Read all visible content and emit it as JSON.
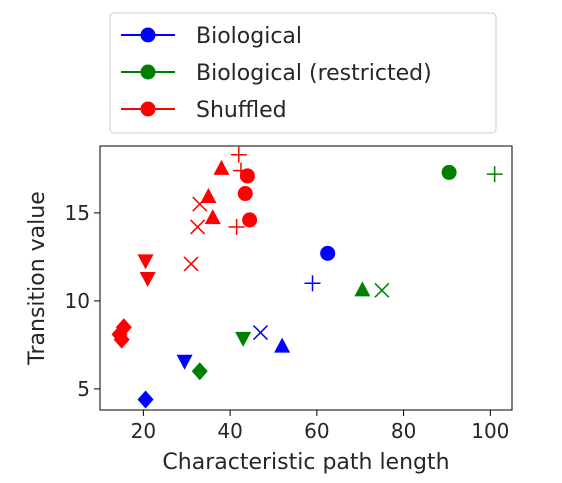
{
  "chart_data": {
    "type": "scatter",
    "xlabel": "Characteristic path length",
    "ylabel": "Transition value",
    "xlim": [
      10,
      105
    ],
    "ylim": [
      3.8,
      18.8
    ],
    "xticks": [
      20,
      40,
      60,
      80,
      100
    ],
    "yticks": [
      5,
      10,
      15
    ],
    "grid": false,
    "legend_position": "top (outside plot)",
    "series": [
      {
        "name": "Biological",
        "color": "#0000ff",
        "points": [
          {
            "x": 62.5,
            "y": 12.7,
            "marker": "circle"
          },
          {
            "x": 59,
            "y": 11.0,
            "marker": "plus"
          },
          {
            "x": 47,
            "y": 8.2,
            "marker": "x"
          },
          {
            "x": 52,
            "y": 7.4,
            "marker": "triangle-up"
          },
          {
            "x": 29.5,
            "y": 6.6,
            "marker": "triangle-down"
          },
          {
            "x": 20.5,
            "y": 4.4,
            "marker": "diamond"
          }
        ]
      },
      {
        "name": "Biological (restricted)",
        "color": "#008000",
        "points": [
          {
            "x": 90.5,
            "y": 17.3,
            "marker": "circle"
          },
          {
            "x": 101,
            "y": 17.2,
            "marker": "plus"
          },
          {
            "x": 75,
            "y": 10.6,
            "marker": "x"
          },
          {
            "x": 70.5,
            "y": 10.6,
            "marker": "triangle-up"
          },
          {
            "x": 43,
            "y": 7.9,
            "marker": "triangle-down"
          },
          {
            "x": 33,
            "y": 6.0,
            "marker": "diamond"
          }
        ]
      },
      {
        "name": "Shuffled",
        "color": "#ff0000",
        "points": [
          {
            "x": 44,
            "y": 17.1,
            "marker": "circle"
          },
          {
            "x": 43.5,
            "y": 16.1,
            "marker": "circle"
          },
          {
            "x": 44.5,
            "y": 14.6,
            "marker": "circle"
          },
          {
            "x": 42,
            "y": 18.3,
            "marker": "plus"
          },
          {
            "x": 42.5,
            "y": 17.4,
            "marker": "plus"
          },
          {
            "x": 41.5,
            "y": 14.2,
            "marker": "plus"
          },
          {
            "x": 33,
            "y": 15.5,
            "marker": "x"
          },
          {
            "x": 32.5,
            "y": 14.2,
            "marker": "x"
          },
          {
            "x": 31,
            "y": 12.1,
            "marker": "x"
          },
          {
            "x": 38,
            "y": 17.5,
            "marker": "triangle-up"
          },
          {
            "x": 35,
            "y": 15.9,
            "marker": "triangle-up"
          },
          {
            "x": 36,
            "y": 14.7,
            "marker": "triangle-up"
          },
          {
            "x": 20.5,
            "y": 12.3,
            "marker": "triangle-down"
          },
          {
            "x": 21,
            "y": 11.3,
            "marker": "triangle-down"
          },
          {
            "x": 15.5,
            "y": 8.5,
            "marker": "diamond"
          },
          {
            "x": 14.5,
            "y": 8.1,
            "marker": "diamond"
          },
          {
            "x": 15,
            "y": 7.8,
            "marker": "diamond"
          }
        ]
      }
    ]
  }
}
